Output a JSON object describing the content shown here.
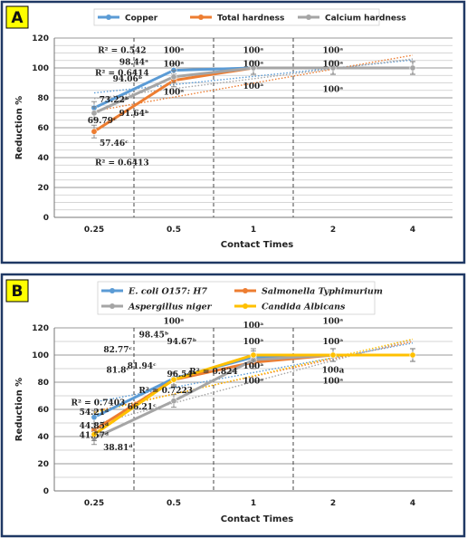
{
  "chart_data": [
    {
      "type": "line",
      "panel_label": "A",
      "categories": [
        "0.25",
        "0.5",
        "1",
        "2",
        "4"
      ],
      "xlabel": "Contact Times",
      "ylabel": "Reduction %",
      "ylim": [
        0,
        120
      ],
      "yticks": [
        "0",
        "20",
        "40",
        "60",
        "80",
        "100",
        "120"
      ],
      "grid": true,
      "legend_position": "top",
      "series": [
        {
          "name": "Copper",
          "color": "#5b9bd5",
          "values": [
            73.22,
            98.44,
            100,
            100,
            100
          ]
        },
        {
          "name": "Total hardness",
          "color": "#ed7d31",
          "values": [
            57.46,
            91.64,
            100,
            100,
            100
          ]
        },
        {
          "name": "Calcium hardness",
          "color": "#a5a5a5",
          "values": [
            69.79,
            94.06,
            100,
            100,
            100
          ]
        }
      ],
      "annotations": [
        {
          "text": "R² = 0.542",
          "x": 0.35,
          "y": 110
        },
        {
          "text": "R² = 0.6414",
          "x": 0.35,
          "y": 95
        },
        {
          "text": "R² = 0.6413",
          "x": 0.35,
          "y": 35
        },
        {
          "text": "73.22ᵇ",
          "x": 0.25,
          "y": 77
        },
        {
          "text": "69.79ᶜ",
          "x": 0.1,
          "y": 63
        },
        {
          "text": "57.46ᶜ",
          "x": 0.25,
          "y": 48
        },
        {
          "text": "98.44ᵃ",
          "x": 0.5,
          "y": 102
        },
        {
          "text": "94.06ᵇ",
          "x": 0.42,
          "y": 91
        },
        {
          "text": "91.64ᵇ",
          "x": 0.5,
          "y": 68
        },
        {
          "text": "100ᵃ",
          "x": 1,
          "y": 110
        },
        {
          "text": "100ᵃ",
          "x": 1,
          "y": 101
        },
        {
          "text": "100ᵃ",
          "x": 1,
          "y": 82
        },
        {
          "text": "100ᵃ",
          "x": 2,
          "y": 110
        },
        {
          "text": "100ᵃ",
          "x": 2,
          "y": 101
        },
        {
          "text": "100ᵃ",
          "x": 2,
          "y": 86
        },
        {
          "text": "100ᵃ",
          "x": 3,
          "y": 110
        },
        {
          "text": "100ᵃ",
          "x": 3,
          "y": 101
        },
        {
          "text": "100ᵃ",
          "x": 3,
          "y": 84
        }
      ]
    },
    {
      "type": "line",
      "panel_label": "B",
      "categories": [
        "0.25",
        "0.5",
        "1",
        "2",
        "4"
      ],
      "xlabel": "Contact Times",
      "ylabel": "Reduction %",
      "ylim": [
        0,
        120
      ],
      "yticks": [
        "0",
        "10",
        "20",
        "30",
        "40",
        "50",
        "60",
        "70",
        "80",
        "90",
        "100",
        "110",
        "120"
      ],
      "ytick_labels_shown": [
        "0",
        "20",
        "40",
        "60",
        "80",
        "100",
        "120"
      ],
      "grid": true,
      "legend_position": "top",
      "series": [
        {
          "name": "E. coli O157: H7",
          "color": "#5b9bd5",
          "values": [
            54.21,
            82.77,
            98.45,
            100,
            100
          ]
        },
        {
          "name": "Salmonella Typhimurium",
          "color": "#ed7d31",
          "values": [
            44.85,
            81.8,
            94.67,
            100,
            100
          ]
        },
        {
          "name": "Aspergillus niger",
          "color": "#a5a5a5",
          "values": [
            38.81,
            66.21,
            96.54,
            100,
            100
          ]
        },
        {
          "name": "Candida Albicans",
          "color": "#ffc000",
          "values": [
            41.57,
            81.94,
            100,
            100,
            100
          ]
        }
      ],
      "annotations": [
        {
          "text": "R² = 0.7403",
          "x": 0.05,
          "y": 63
        },
        {
          "text": "R² = 0.824",
          "x": 1.5,
          "y": 86
        },
        {
          "text": "R² = 0.7223",
          "x": 0.9,
          "y": 72
        },
        {
          "text": "54.21ᵈ",
          "x": 0,
          "y": 56
        },
        {
          "text": "44.85ᵈ",
          "x": 0,
          "y": 46
        },
        {
          "text": "41.57ᵈ",
          "x": 0,
          "y": 39
        },
        {
          "text": "38.81ᵈ",
          "x": 0.3,
          "y": 30
        },
        {
          "text": "82.77ᶜ",
          "x": 0.3,
          "y": 102
        },
        {
          "text": "81.8ᶜ",
          "x": 0.3,
          "y": 87
        },
        {
          "text": "81.94ᶜ",
          "x": 0.6,
          "y": 90
        },
        {
          "text": "66.21ᶜ",
          "x": 0.6,
          "y": 60
        },
        {
          "text": "98.45ᵇ",
          "x": 0.75,
          "y": 113
        },
        {
          "text": "100ᵃ",
          "x": 1,
          "y": 123
        },
        {
          "text": "94.67ᵇ",
          "x": 1.1,
          "y": 108
        },
        {
          "text": "96.54ᵇ",
          "x": 1.1,
          "y": 84
        },
        {
          "text": "100ᵃ",
          "x": 2,
          "y": 120
        },
        {
          "text": "100ᵃ",
          "x": 2,
          "y": 108
        },
        {
          "text": "100ᵃ",
          "x": 2,
          "y": 90
        },
        {
          "text": "100ᵃ",
          "x": 2,
          "y": 79
        },
        {
          "text": "100ᵃ",
          "x": 3,
          "y": 123
        },
        {
          "text": "100ᵃ",
          "x": 3,
          "y": 108
        },
        {
          "text": "100a",
          "x": 3,
          "y": 87
        },
        {
          "text": "100ᵃ",
          "x": 3,
          "y": 79
        }
      ]
    }
  ]
}
